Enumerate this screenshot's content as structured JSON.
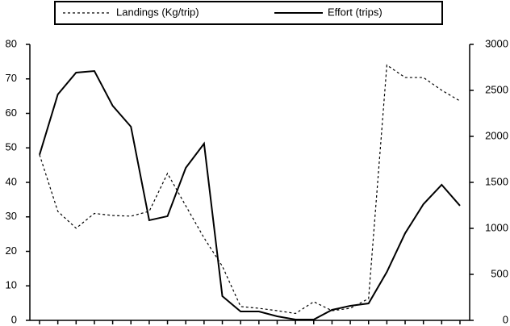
{
  "chart_data": {
    "type": "line",
    "categories": [
      null,
      null,
      null,
      null,
      null,
      null,
      null,
      null,
      null,
      null,
      null,
      null,
      null,
      null,
      null,
      null,
      null,
      null,
      null,
      null,
      null,
      null,
      null,
      null
    ],
    "series": [
      {
        "name": "Landings (Kg/trip)",
        "color": "#000000",
        "dash": true,
        "axis": "y",
        "values": [
          48,
          31.6,
          26.7,
          31,
          30.4,
          30.2,
          31.6,
          42.6,
          33.2,
          23.9,
          15.7,
          4,
          3.5,
          2.8,
          2,
          5.4,
          2.8,
          3.5,
          6.3,
          74,
          70.4,
          70.4,
          66.7,
          63.6
        ]
      },
      {
        "name": "Effort (trips)",
        "color": "#000000",
        "dash": false,
        "axis": "y2",
        "values": [
          1800,
          2456,
          2693,
          2710,
          2333,
          2105,
          1088,
          1132,
          1658,
          1921,
          263,
          96,
          96,
          44,
          9,
          9,
          114,
          158,
          184,
          526,
          947,
          1263,
          1474,
          1246
        ]
      }
    ],
    "ylim": [
      0,
      80
    ],
    "yticks": [
      0,
      10,
      20,
      30,
      40,
      50,
      60,
      70,
      80
    ],
    "y2lim": [
      0,
      3000
    ],
    "y2ticks": [
      0,
      500,
      1000,
      1500,
      2000,
      2500,
      3000
    ],
    "grid": false,
    "legend": "top"
  }
}
